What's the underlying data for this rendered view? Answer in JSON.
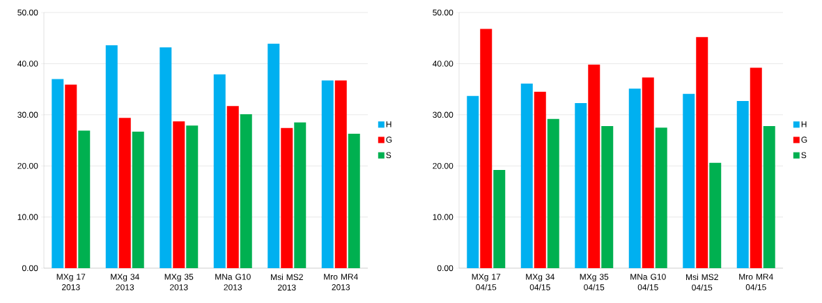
{
  "chart_data": [
    {
      "type": "bar",
      "categories": [
        "MXg 17 2013",
        "MXg 34 2013",
        "MXg 35 2013",
        "MNa G10 2013",
        "Msi MS2 2013",
        "Mro MR4 2013"
      ],
      "series": [
        {
          "name": "H",
          "color": "#00b0f0",
          "values": [
            37.0,
            43.6,
            43.2,
            37.9,
            43.9,
            36.7
          ]
        },
        {
          "name": "G",
          "color": "#ff0000",
          "values": [
            35.9,
            29.4,
            28.7,
            31.7,
            27.4,
            36.7
          ]
        },
        {
          "name": "S",
          "color": "#00b050",
          "values": [
            26.9,
            26.7,
            27.9,
            30.1,
            28.5,
            26.3
          ]
        }
      ],
      "ylim": [
        0,
        50
      ],
      "yticks": [
        {
          "value": 0,
          "label": "0.00"
        },
        {
          "value": 10,
          "label": "10.00"
        },
        {
          "value": 20,
          "label": "20.00"
        },
        {
          "value": 30,
          "label": "30.00"
        },
        {
          "value": 40,
          "label": "40.00"
        },
        {
          "value": 50,
          "label": "50.00"
        }
      ],
      "grid": "y",
      "legend": "right"
    },
    {
      "type": "bar",
      "categories": [
        "MXg 17 04/15",
        "MXg 34 04/15",
        "MXg 35 04/15",
        "MNa G10 04/15",
        "Msi MS2 04/15",
        "Mro MR4 04/15"
      ],
      "series": [
        {
          "name": "H",
          "color": "#00b0f0",
          "values": [
            33.7,
            36.1,
            32.3,
            35.1,
            34.1,
            32.7
          ]
        },
        {
          "name": "G",
          "color": "#ff0000",
          "values": [
            46.8,
            34.5,
            39.8,
            37.3,
            45.2,
            39.2
          ]
        },
        {
          "name": "S",
          "color": "#00b050",
          "values": [
            19.2,
            29.2,
            27.8,
            27.5,
            20.6,
            27.8
          ]
        }
      ],
      "ylim": [
        0,
        50
      ],
      "yticks": [
        {
          "value": 0,
          "label": "0.00"
        },
        {
          "value": 10,
          "label": "10.00"
        },
        {
          "value": 20,
          "label": "20.00"
        },
        {
          "value": 30,
          "label": "30.00"
        },
        {
          "value": 40,
          "label": "40.00"
        },
        {
          "value": 50,
          "label": "50.00"
        }
      ],
      "grid": "y",
      "legend": "right"
    }
  ]
}
